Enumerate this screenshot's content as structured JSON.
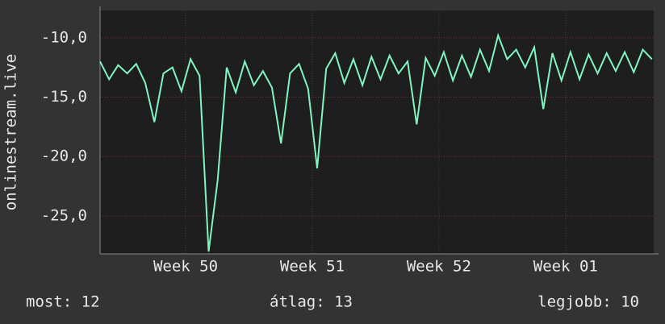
{
  "chart_data": {
    "type": "line",
    "ylabel": "onlinestream.live",
    "x": [
      0,
      0.5,
      1,
      1.5,
      2,
      2.5,
      3,
      3.5,
      4,
      4.5,
      5,
      5.5,
      6,
      6.5,
      7,
      7.5,
      8,
      8.5,
      9,
      9.5,
      10,
      10.5,
      11,
      11.5,
      12,
      12.5,
      13,
      13.5,
      14,
      14.5,
      15,
      15.5,
      16,
      16.5,
      17,
      17.5,
      18,
      18.5,
      19,
      19.5,
      20,
      20.5,
      21,
      21.5,
      22,
      22.5,
      23,
      23.5,
      24,
      24.5,
      25,
      25.5,
      26,
      26.5,
      27,
      27.5,
      28,
      28.5,
      29,
      29.5,
      30,
      30.5
    ],
    "values": [
      -12,
      -13.5,
      -12.3,
      -13,
      -12.2,
      -13.8,
      -17.1,
      -13,
      -12.5,
      -14.5,
      -11.8,
      -13.2,
      -28,
      -22,
      -12.5,
      -14.6,
      -12,
      -14,
      -12.8,
      -14.2,
      -18.9,
      -13,
      -12.2,
      -14.3,
      -21,
      -12.6,
      -11.3,
      -13.8,
      -11.8,
      -14,
      -11.6,
      -13.5,
      -11.5,
      -13,
      -12,
      -17.3,
      -11.7,
      -13.2,
      -11.2,
      -13.6,
      -11.5,
      -13.3,
      -11,
      -12.8,
      -9.8,
      -11.8,
      -11,
      -12.5,
      -10.8,
      -16,
      -11.3,
      -13.6,
      -11.2,
      -13.5,
      -11.4,
      -13,
      -11.3,
      -12.8,
      -11.2,
      -12.9,
      -11,
      -11.8
    ],
    "color": "#80f5c0",
    "xlim": [
      0,
      30.6
    ],
    "xticks": [
      {
        "value": 4.73,
        "label": "Week 50"
      },
      {
        "value": 11.73,
        "label": "Week 51"
      },
      {
        "value": 18.73,
        "label": "Week 52"
      },
      {
        "value": 25.73,
        "label": "Week 01"
      }
    ],
    "ylim": [
      -28.2,
      -7.7
    ],
    "yticks": [
      {
        "value": -10,
        "label": "-10,0"
      },
      {
        "value": -15,
        "label": "-15,0"
      },
      {
        "value": -20,
        "label": "-20,0"
      },
      {
        "value": -25,
        "label": "-25,0"
      }
    ],
    "grid": true
  },
  "footer": {
    "current": "most: 12",
    "average": "átlag: 13",
    "best": "legjobb: 10"
  }
}
